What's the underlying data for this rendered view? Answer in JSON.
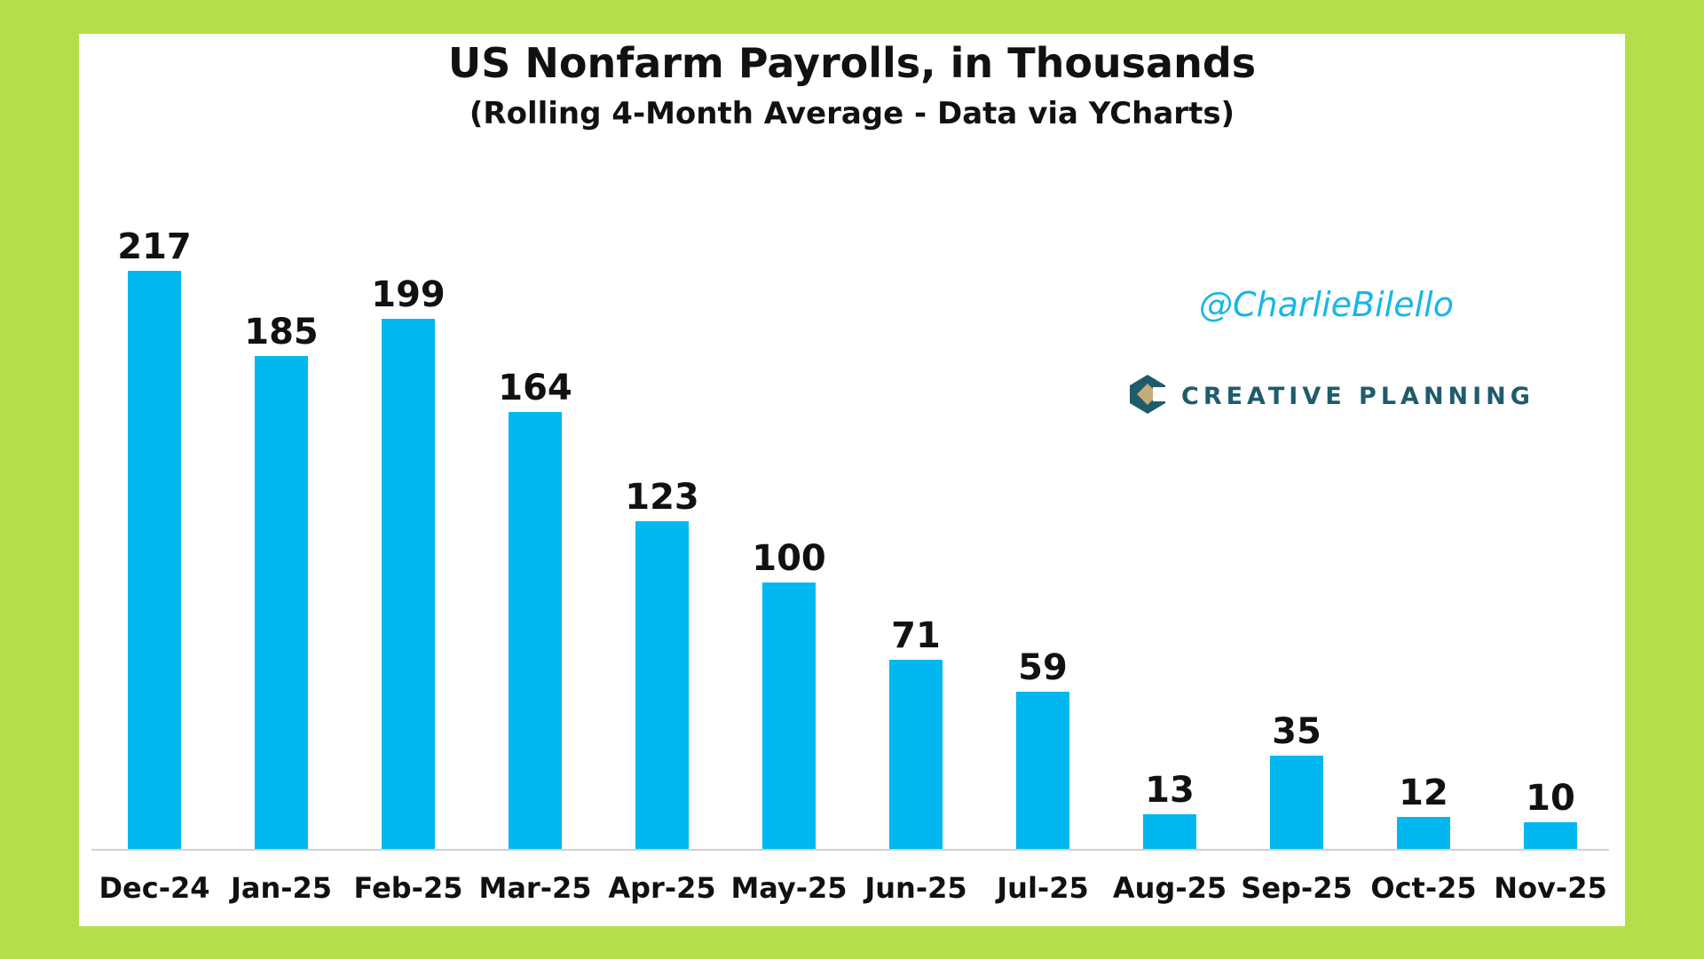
{
  "colors": {
    "background": "#b5df4a",
    "panel": "#ffffff",
    "bar": "#00b8ef",
    "text": "#111111",
    "handle": "#19b6e6",
    "brand": "#1f5c6b",
    "brand_accent": "#c8a97a"
  },
  "watermark": {
    "handle": "@CharlieBilello",
    "brand": "CREATIVE PLANNING",
    "brand_icon": "creative-planning-logo-icon"
  },
  "chart_data": {
    "type": "bar",
    "title": "US Nonfarm Payrolls, in Thousands",
    "subtitle": "(Rolling 4-Month Average - Data via YCharts)",
    "xlabel": "",
    "ylabel": "",
    "categories": [
      "Dec-24",
      "Jan-25",
      "Feb-25",
      "Mar-25",
      "Apr-25",
      "May-25",
      "Jun-25",
      "Jul-25",
      "Aug-25",
      "Sep-25",
      "Oct-25",
      "Nov-25"
    ],
    "values": [
      217,
      185,
      199,
      164,
      123,
      100,
      71,
      59,
      13,
      35,
      12,
      10
    ],
    "ylim": [
      0,
      220
    ],
    "grid": false,
    "legend": "none"
  }
}
